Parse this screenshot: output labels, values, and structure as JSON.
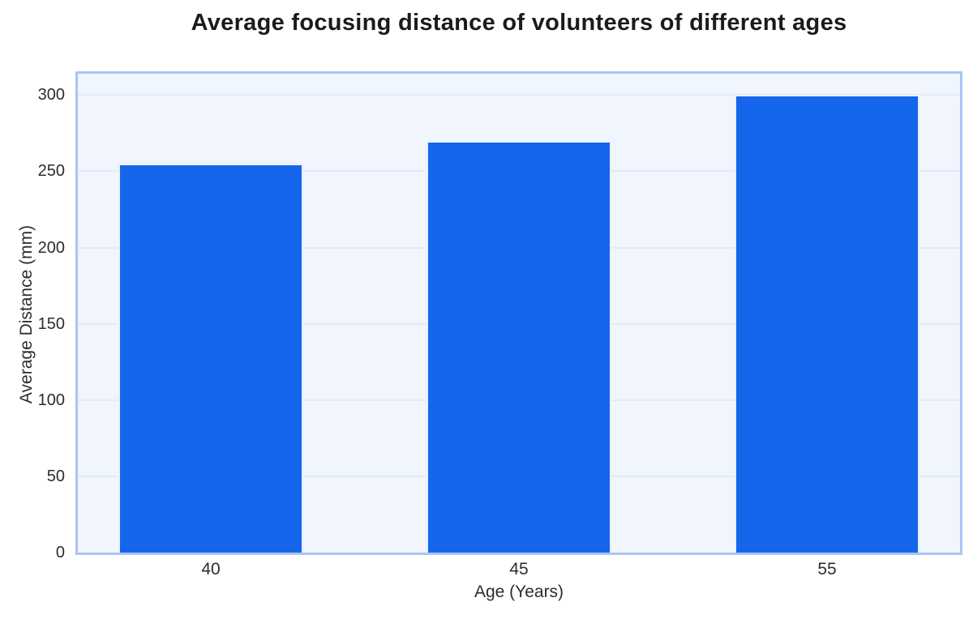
{
  "chart_data": {
    "type": "bar",
    "title": "Average focusing distance of volunteers of different ages",
    "xlabel": "Age (Years)",
    "ylabel": "Average Distance (mm)",
    "categories": [
      "40",
      "45",
      "55"
    ],
    "values": [
      255,
      270,
      300
    ],
    "yticks": [
      0,
      50,
      100,
      150,
      200,
      250,
      300
    ],
    "ylim": [
      0,
      314
    ],
    "grid": "horizontal",
    "legend": "none",
    "bar_color": "#1566EB",
    "plot_bg": "#F1F5FD",
    "grid_color": "#E3EAF7",
    "border_color": "#A8C5F3",
    "text_color": "#2D2D2D"
  }
}
